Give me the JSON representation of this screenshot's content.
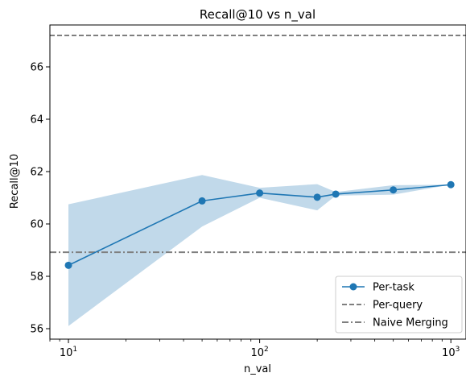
{
  "chart_data": {
    "type": "line",
    "title": "Recall@10 vs n_val",
    "xlabel": "n_val",
    "ylabel": "Recall@10",
    "xscale": "log",
    "xlim": [
      8,
      1200
    ],
    "ylim": [
      55.6,
      67.6
    ],
    "x_ticks": [
      {
        "value": 10,
        "label_base": "10",
        "label_exp": "1"
      },
      {
        "value": 100,
        "label_base": "10",
        "label_exp": "2"
      },
      {
        "value": 1000,
        "label_base": "10",
        "label_exp": "3"
      }
    ],
    "y_ticks": [
      56,
      58,
      60,
      62,
      64,
      66
    ],
    "grid": false,
    "legend_position": "lower-right",
    "series": [
      {
        "name": "Per-task",
        "color": "#1f77b4",
        "marker": "circle",
        "x": [
          10,
          50,
          100,
          200,
          250,
          500,
          1000
        ],
        "y": [
          58.42,
          60.88,
          61.18,
          61.02,
          61.14,
          61.3,
          61.5
        ],
        "band_lower": [
          56.1,
          59.9,
          61.0,
          60.52,
          61.08,
          61.12,
          61.5
        ],
        "band_upper": [
          60.75,
          61.87,
          61.38,
          61.52,
          61.22,
          61.48,
          61.5
        ]
      }
    ],
    "reference_lines": [
      {
        "name": "Per-query",
        "y": 67.2,
        "color": "#7f7f7f",
        "style": "dashed"
      },
      {
        "name": "Naive Merging",
        "y": 58.92,
        "color": "#7f7f7f",
        "style": "dashdot"
      }
    ]
  }
}
